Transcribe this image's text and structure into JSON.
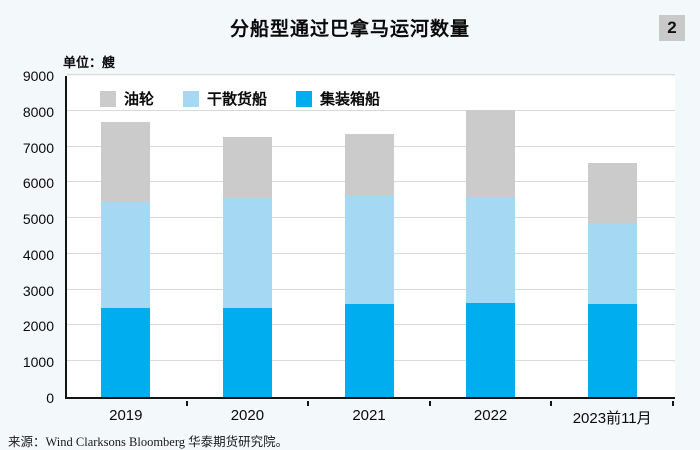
{
  "header": {
    "title": "分船型通过巴拿马运河数量",
    "badge": "2",
    "unit_label": "单位：艘"
  },
  "chart_data": {
    "type": "bar",
    "stacked": true,
    "title": "分船型通过巴拿马运河数量",
    "unit": "艘",
    "categories": [
      "2019",
      "2020",
      "2021",
      "2022",
      "2023前11月"
    ],
    "series": [
      {
        "name": "集装箱船",
        "color": "#00aeef",
        "values": [
          2480,
          2480,
          2590,
          2630,
          2610
        ]
      },
      {
        "name": "干散货船",
        "color": "#a5d9f3",
        "values": [
          2960,
          3070,
          3030,
          2960,
          2240
        ]
      },
      {
        "name": "油轮",
        "color": "#cbcbcb",
        "values": [
          2260,
          1720,
          1720,
          2430,
          1700
        ]
      }
    ],
    "totals": [
      7700,
      7270,
      7340,
      8020,
      6550
    ],
    "legend_order": [
      "油轮",
      "干散货船",
      "集装箱船"
    ],
    "ylim": [
      0,
      9000
    ],
    "ytick_interval": 1000,
    "grid": true,
    "legend_position": "top-left-inside",
    "plot_background": "#ffffff",
    "page_background": "#f3f8fb",
    "gridline_color": "#d9d9d9",
    "axis_color": "#141414"
  },
  "footer": {
    "source": "来源：Wind Clarksons Bloomberg 华泰期货研究院。"
  }
}
